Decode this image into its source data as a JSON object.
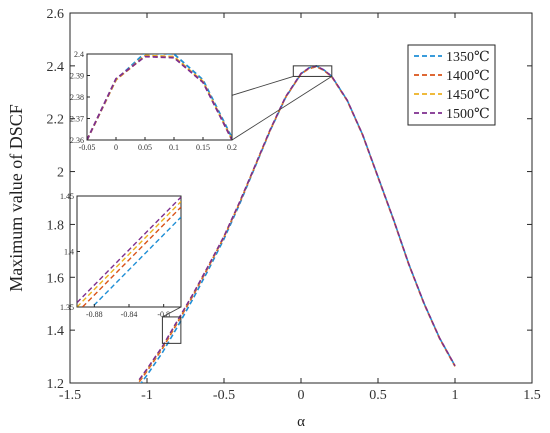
{
  "chart_data": {
    "type": "line",
    "xlabel": "α",
    "ylabel": "Maximum value of DSCF",
    "xlim": [
      -1.5,
      1.5
    ],
    "ylim": [
      1.2,
      2.6
    ],
    "xticks": [
      -1.5,
      -1,
      -0.5,
      0,
      0.5,
      1,
      1.5
    ],
    "xtick_labels": [
      "-1.5",
      "-1",
      "-0.5",
      "0",
      "0.5",
      "1",
      "1.5"
    ],
    "yticks": [
      1.2,
      1.4,
      1.6,
      1.8,
      2.0,
      2.2,
      2.4,
      2.6
    ],
    "ytick_labels": [
      "1.2",
      "1.4",
      "1.6",
      "1.8",
      "2",
      "2.2",
      "2.4",
      "2.6"
    ],
    "grid": false,
    "legend_position": "top-right",
    "line_style": "dashed",
    "x": [
      -1.05,
      -1.0,
      -0.9,
      -0.8,
      -0.7,
      -0.6,
      -0.5,
      -0.4,
      -0.3,
      -0.2,
      -0.1,
      0.0,
      0.05,
      0.1,
      0.15,
      0.2,
      0.3,
      0.4,
      0.5,
      0.6,
      0.7,
      0.8,
      0.9,
      1.0
    ],
    "series": [
      {
        "name": "1350℃",
        "color": "#1f8fd6",
        "values": [
          1.19,
          1.23,
          1.315,
          1.415,
          1.52,
          1.63,
          1.745,
          1.875,
          2.015,
          2.155,
          2.28,
          2.37,
          2.392,
          2.4,
          2.384,
          2.36,
          2.27,
          2.14,
          1.98,
          1.82,
          1.65,
          1.5,
          1.37,
          1.265
        ]
      },
      {
        "name": "1400℃",
        "color": "#d95319",
        "values": [
          1.205,
          1.245,
          1.33,
          1.43,
          1.532,
          1.64,
          1.752,
          1.88,
          2.018,
          2.157,
          2.281,
          2.369,
          2.389,
          2.397,
          2.382,
          2.358,
          2.268,
          2.138,
          1.978,
          1.818,
          1.648,
          1.498,
          1.368,
          1.263
        ]
      },
      {
        "name": "1450℃",
        "color": "#edb120",
        "values": [
          1.21,
          1.25,
          1.335,
          1.435,
          1.536,
          1.643,
          1.754,
          1.882,
          2.019,
          2.158,
          2.282,
          2.37,
          2.39,
          2.398,
          2.383,
          2.359,
          2.269,
          2.139,
          1.979,
          1.819,
          1.649,
          1.499,
          1.369,
          1.264
        ]
      },
      {
        "name": "1500℃",
        "color": "#7e2f8e",
        "values": [
          1.213,
          1.253,
          1.338,
          1.438,
          1.538,
          1.645,
          1.755,
          1.883,
          2.02,
          2.159,
          2.283,
          2.371,
          2.391,
          2.399,
          2.384,
          2.36,
          2.27,
          2.14,
          1.98,
          1.82,
          1.65,
          1.5,
          1.37,
          1.265
        ]
      }
    ],
    "insets": [
      {
        "name": "peak-zoom",
        "xlim": [
          -0.05,
          0.2
        ],
        "ylim": [
          2.36,
          2.4
        ],
        "xticks": [
          -0.05,
          0,
          0.05,
          0.1,
          0.15,
          0.2
        ],
        "xtick_labels": [
          "-0.05",
          "0",
          "0.05",
          "0.1",
          "0.15",
          "0.2"
        ],
        "yticks": [
          2.36,
          2.37,
          2.38,
          2.39,
          2.4
        ],
        "ytick_labels": [
          "2.36",
          "2.37",
          "2.38",
          "2.39",
          "2.4"
        ],
        "x": [
          -0.05,
          0.0,
          0.05,
          0.1,
          0.15,
          0.2
        ],
        "series": [
          {
            "name": "1350℃",
            "values": [
              2.36,
              2.388,
              2.4005,
              2.4,
              2.388,
              2.361
            ]
          },
          {
            "name": "1400℃",
            "values": [
              2.36,
              2.388,
              2.399,
              2.3985,
              2.387,
              2.36
            ]
          },
          {
            "name": "1450℃",
            "values": [
              2.36,
              2.388,
              2.3993,
              2.3988,
              2.3872,
              2.3603
            ]
          },
          {
            "name": "1500℃",
            "values": [
              2.36,
              2.3885,
              2.3988,
              2.3983,
              2.3868,
              2.3601
            ]
          }
        ]
      },
      {
        "name": "rise-zoom",
        "xlim": [
          -0.9,
          -0.78
        ],
        "ylim": [
          1.35,
          1.45
        ],
        "xticks": [
          -0.88,
          -0.84,
          -0.8
        ],
        "xtick_labels": [
          "-0.88",
          "-0.84",
          "-0.8"
        ],
        "yticks": [
          1.35,
          1.4,
          1.45
        ],
        "ytick_labels": [
          "1.35",
          "1.4",
          "1.45"
        ],
        "x": [
          -0.9,
          -0.78
        ],
        "series": [
          {
            "name": "1350℃",
            "values": [
              1.336,
              1.431
            ]
          },
          {
            "name": "1400℃",
            "values": [
              1.345,
              1.44
            ]
          },
          {
            "name": "1450℃",
            "values": [
              1.35,
              1.445
            ]
          },
          {
            "name": "1500℃",
            "values": [
              1.354,
              1.449
            ]
          }
        ]
      }
    ]
  }
}
